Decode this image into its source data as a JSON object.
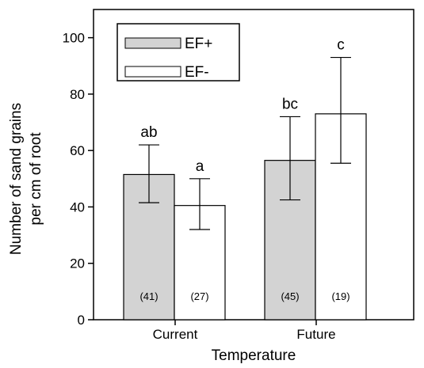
{
  "chart_data": {
    "type": "bar",
    "xlabel": "Temperature",
    "ylabel_lines": [
      "Number of sand grains",
      "per cm of root"
    ],
    "categories": [
      "Current",
      "Future"
    ],
    "ylim": [
      0,
      110
    ],
    "yticks": [
      0,
      20,
      40,
      60,
      80,
      100
    ],
    "grid": false,
    "legend_position": "top-left",
    "series": [
      {
        "name": "EF+",
        "color": "#d3d3d3",
        "values": [
          51.5,
          56.5
        ],
        "err_low": [
          41.5,
          42.5
        ],
        "err_high": [
          62.0,
          72.0
        ],
        "sig": [
          "ab",
          "bc"
        ],
        "n": [
          "(41)",
          "(45)"
        ]
      },
      {
        "name": "EF-",
        "color": "#ffffff",
        "values": [
          40.5,
          73.0
        ],
        "err_low": [
          32.0,
          55.5
        ],
        "err_high": [
          50.0,
          93.0
        ],
        "sig": [
          "a",
          "c"
        ],
        "n": [
          "(27)",
          "(19)"
        ]
      }
    ]
  }
}
